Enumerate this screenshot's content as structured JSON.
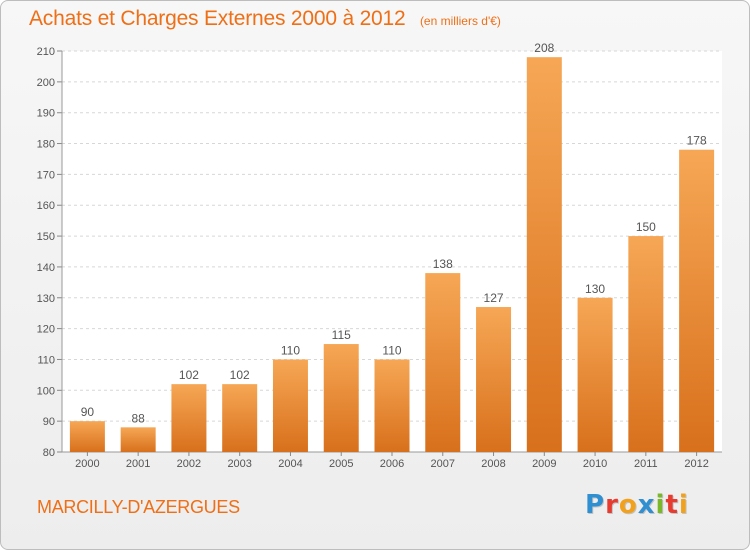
{
  "header": {
    "title": "Achats et Charges Externes 2000 à 2012",
    "unit": "(en milliers d'€)"
  },
  "footer": {
    "city": "MARCILLY-D'AZERGUES",
    "logo_letters": [
      {
        "ch": "P",
        "color": "#2f8fd1"
      },
      {
        "ch": "r",
        "color": "#e63b2e"
      },
      {
        "ch": "o",
        "color": "#f2a11c"
      },
      {
        "ch": "x",
        "color": "#2f8fd1"
      },
      {
        "ch": "i",
        "color": "#7ab829"
      },
      {
        "ch": "t",
        "color": "#e63b2e"
      },
      {
        "ch": "i",
        "color": "#f2a11c"
      }
    ]
  },
  "chart_data": {
    "type": "bar",
    "title": "Achats et Charges Externes 2000 à 2012",
    "subtitle": "(en milliers d'€)",
    "categories": [
      "2000",
      "2001",
      "2002",
      "2003",
      "2004",
      "2005",
      "2006",
      "2007",
      "2008",
      "2009",
      "2010",
      "2011",
      "2012"
    ],
    "values": [
      90,
      88,
      102,
      102,
      110,
      115,
      110,
      138,
      127,
      208,
      130,
      150,
      178
    ],
    "ylim": [
      80,
      210
    ],
    "yticks": [
      80,
      90,
      100,
      110,
      120,
      130,
      140,
      150,
      160,
      170,
      180,
      190,
      200,
      210
    ],
    "grid": true,
    "bar_color_top": "#f6a755",
    "bar_color_bottom": "#d8701c",
    "label_color": "#555555"
  }
}
